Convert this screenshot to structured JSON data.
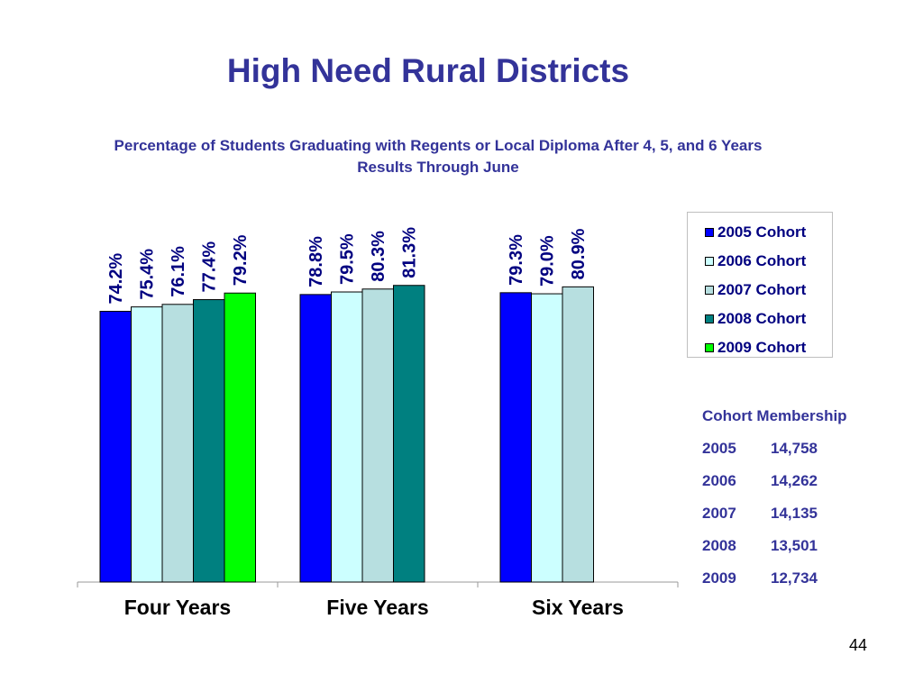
{
  "slide": {
    "title": "High Need Rural Districts",
    "subtitle_line1": "Percentage of Students Graduating with Regents or Local Diploma After 4, 5, and 6 Years",
    "subtitle_line2": "Results Through June",
    "page_number": "44"
  },
  "chart_data": {
    "type": "bar",
    "categories": [
      "Four Years",
      "Five Years",
      "Six Years"
    ],
    "series": [
      {
        "name": "2005 Cohort",
        "color": "#0000ff",
        "values": [
          74.2,
          78.8,
          79.3
        ],
        "labels": [
          "74.2%",
          "78.8%",
          "79.3%"
        ]
      },
      {
        "name": "2006 Cohort",
        "color": "#ccffff",
        "values": [
          75.4,
          79.5,
          79.0
        ],
        "labels": [
          "75.4%",
          "79.5%",
          "79.0%"
        ]
      },
      {
        "name": "2007 Cohort",
        "color": "#b7dfe0",
        "values": [
          76.1,
          80.3,
          80.9
        ],
        "labels": [
          "76.1%",
          "80.3%",
          "80.9%"
        ]
      },
      {
        "name": "2008 Cohort",
        "color": "#008080",
        "values": [
          77.4,
          81.3,
          null
        ],
        "labels": [
          "77.4%",
          "81.3%",
          null
        ]
      },
      {
        "name": "2009 Cohort",
        "color": "#00ff00",
        "values": [
          79.2,
          null,
          null
        ],
        "labels": [
          "79.2%",
          null,
          null
        ]
      }
    ],
    "ylim": [
      0,
      100
    ],
    "legend_position": "right",
    "grid": false
  },
  "membership": {
    "title": "Cohort Membership",
    "rows": [
      {
        "year": "2005",
        "count": "14,758"
      },
      {
        "year": "2006",
        "count": "14,262"
      },
      {
        "year": "2007",
        "count": "14,135"
      },
      {
        "year": "2008",
        "count": "13,501"
      },
      {
        "year": "2009",
        "count": "12,734"
      }
    ]
  }
}
